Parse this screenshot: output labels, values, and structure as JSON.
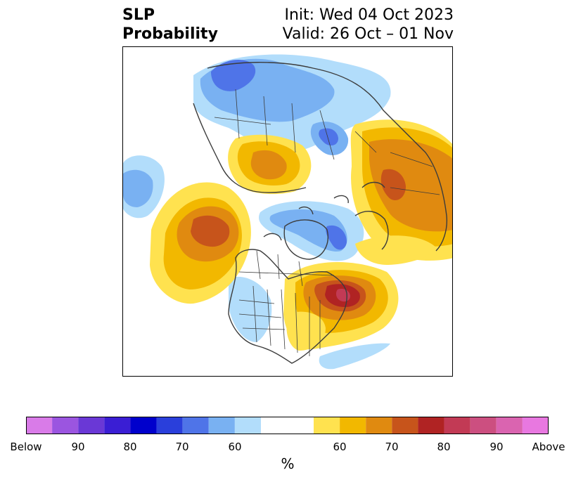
{
  "title": {
    "left_line1": "SLP",
    "left_line2": "Probability",
    "right_line1": "Init: Wed 04 Oct 2023",
    "right_line2": "Valid: 26 Oct – 01 Nov"
  },
  "colorbar": {
    "unit": "%",
    "colors": [
      "#d97be8",
      "#9b55e0",
      "#6a38d6",
      "#3a1ed4",
      "#0000cc",
      "#2a3fdb",
      "#4f74e8",
      "#79b1f2",
      "#b2ddfb",
      "#ffffff",
      "#ffe24f",
      "#f2b800",
      "#e08a10",
      "#c7541b",
      "#b02323",
      "#c23a55",
      "#cc4f80",
      "#da64b0",
      "#e878e0"
    ],
    "ticks": [
      {
        "label": "Below"
      },
      {
        "label": "90"
      },
      {
        "label": "80"
      },
      {
        "label": "70"
      },
      {
        "label": "60"
      },
      {
        "label": "60"
      },
      {
        "label": "70"
      },
      {
        "label": "80"
      },
      {
        "label": "90"
      },
      {
        "label": "Above"
      }
    ]
  }
}
